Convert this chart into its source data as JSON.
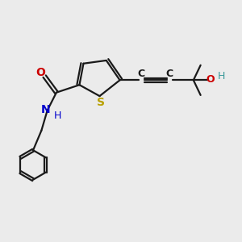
{
  "bg_color": "#ebebeb",
  "bond_color": "#1a1a1a",
  "sulfur_color": "#b8a000",
  "oxygen_color": "#cc0000",
  "nitrogen_color": "#0000cc",
  "hydroxyl_o_color": "#cc0000",
  "hydroxyl_h_color": "#3a9a9a",
  "line_width": 1.6,
  "figsize": [
    3.0,
    3.0
  ],
  "dpi": 100,
  "xlim": [
    0,
    10
  ],
  "ylim": [
    0,
    10
  ]
}
